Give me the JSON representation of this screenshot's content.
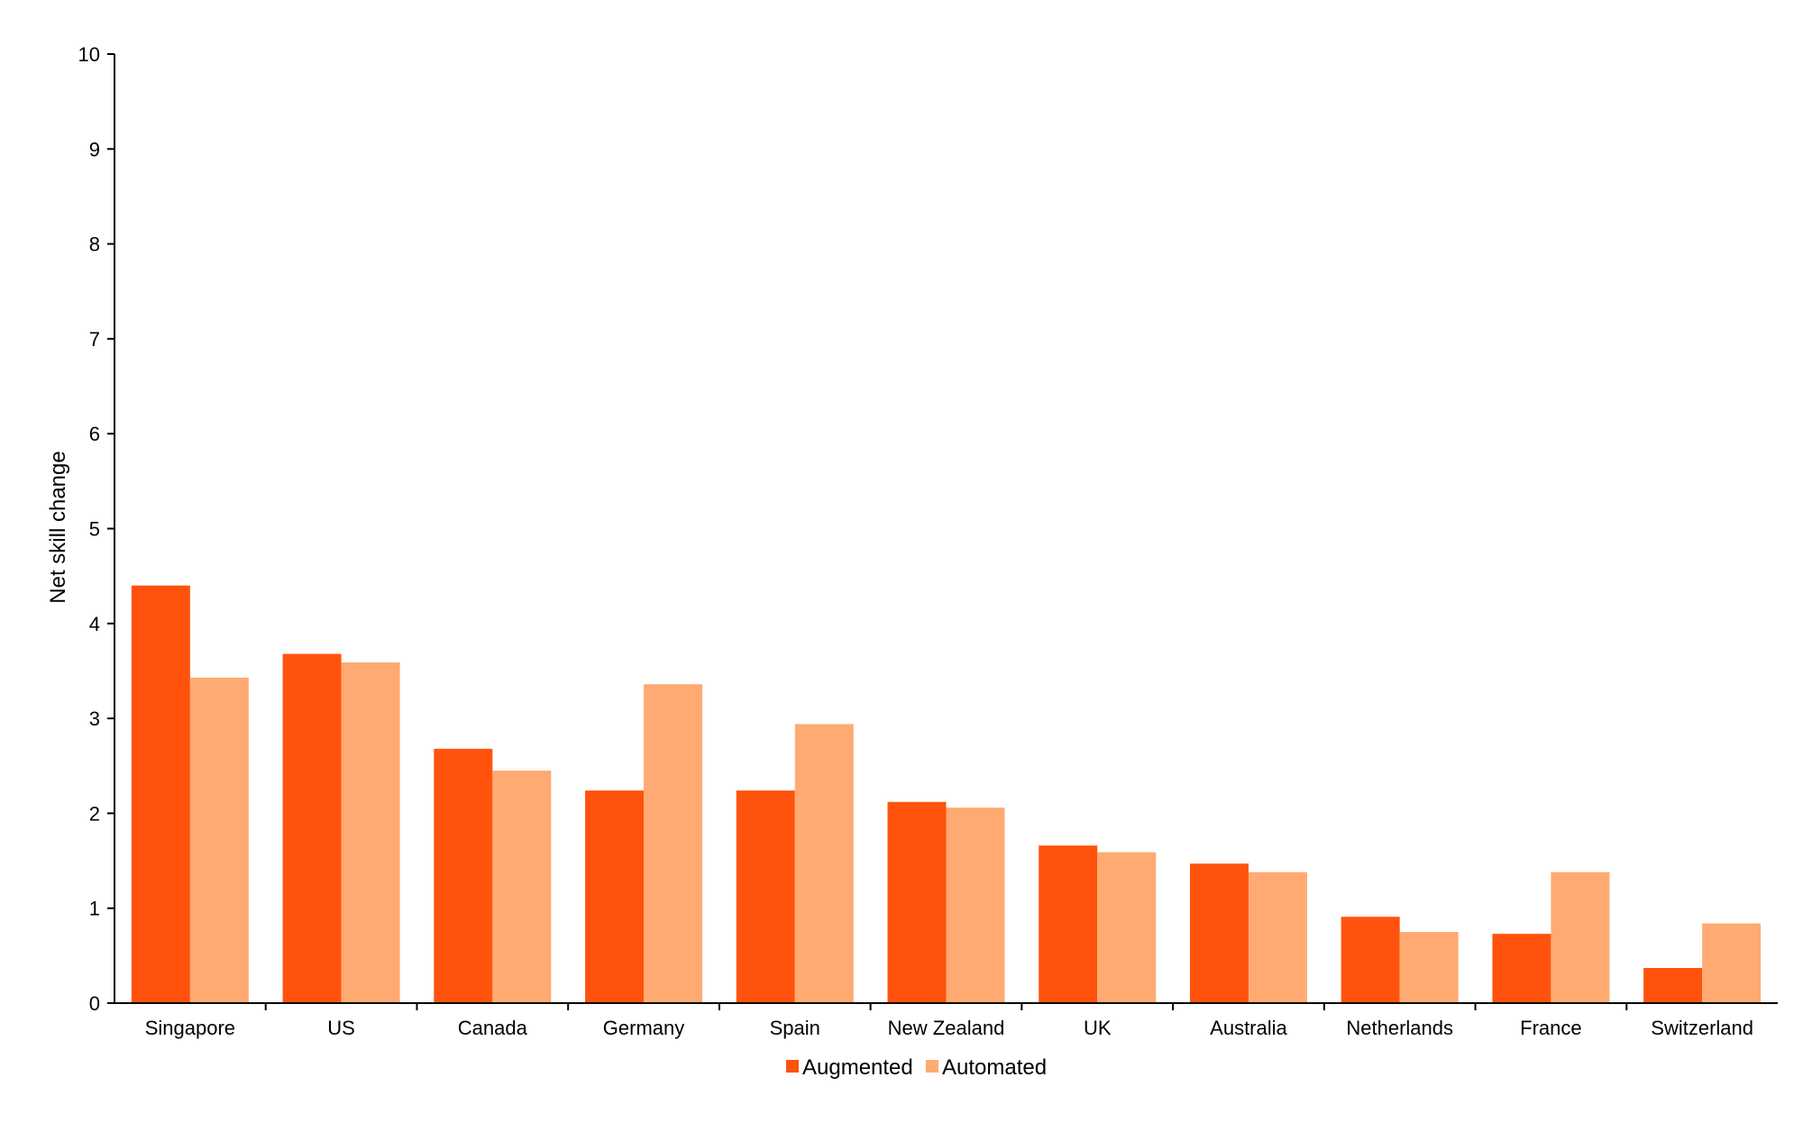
{
  "chart_data": {
    "type": "bar",
    "categories": [
      "Singapore",
      "US",
      "Canada",
      "Germany",
      "Spain",
      "New Zealand",
      "UK",
      "Australia",
      "Netherlands",
      "France",
      "Switzerland"
    ],
    "series": [
      {
        "name": "Augmented",
        "color": "#FF530D",
        "values": [
          4.4,
          3.68,
          2.68,
          2.24,
          2.24,
          2.12,
          1.66,
          1.47,
          0.91,
          0.73,
          0.37
        ]
      },
      {
        "name": "Automated",
        "color": "#FFAA72",
        "values": [
          3.43,
          3.59,
          2.45,
          3.36,
          2.94,
          2.06,
          1.59,
          1.38,
          0.75,
          1.38,
          0.84
        ]
      }
    ],
    "title": "",
    "xlabel": "",
    "ylabel": "Net skill change",
    "ylim": [
      0,
      10
    ],
    "yticks": [
      "0",
      "1",
      "2",
      "3",
      "4",
      "5",
      "6",
      "7",
      "8",
      "9",
      "10"
    ],
    "grid": false,
    "legend": "bottom-center"
  }
}
